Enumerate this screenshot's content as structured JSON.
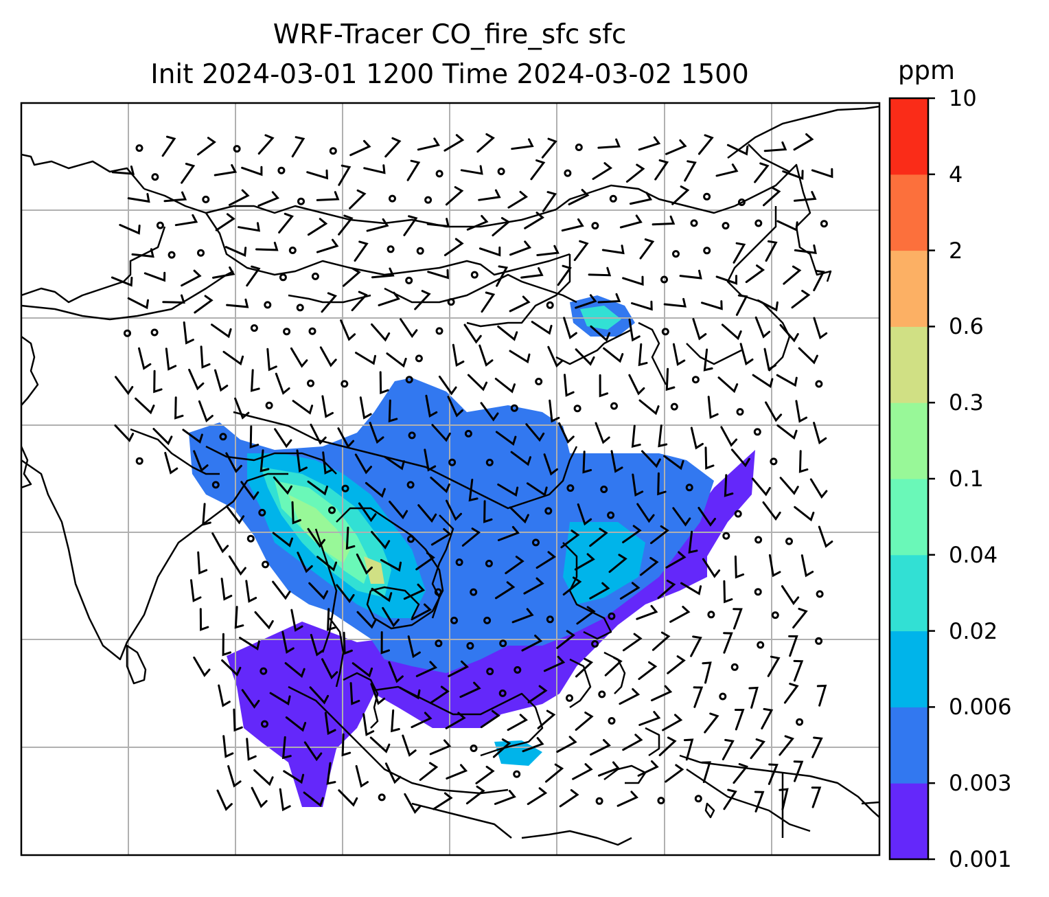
{
  "title": {
    "line1": "WRF-Tracer CO_fire_sfc sfc",
    "line2": "Init 2024-03-01 1200 Time 2024-03-02 1500"
  },
  "colorbar": {
    "units": "ppm",
    "ticks": [
      "0.001",
      "0.003",
      "0.006",
      "0.02",
      "0.04",
      "0.1",
      "0.3",
      "0.6",
      "2",
      "4",
      "10"
    ],
    "colors": [
      "#6428fa",
      "#3278f0",
      "#00b4ea",
      "#32e0d4",
      "#6af8b8",
      "#98f898",
      "#d0e084",
      "#fcb064",
      "#fc703c",
      "#fa2c18"
    ]
  },
  "map": {
    "gridlines": "on",
    "features": [
      "coastlines",
      "country-borders",
      "wind-barbs",
      "CO-concentration-field"
    ]
  }
}
